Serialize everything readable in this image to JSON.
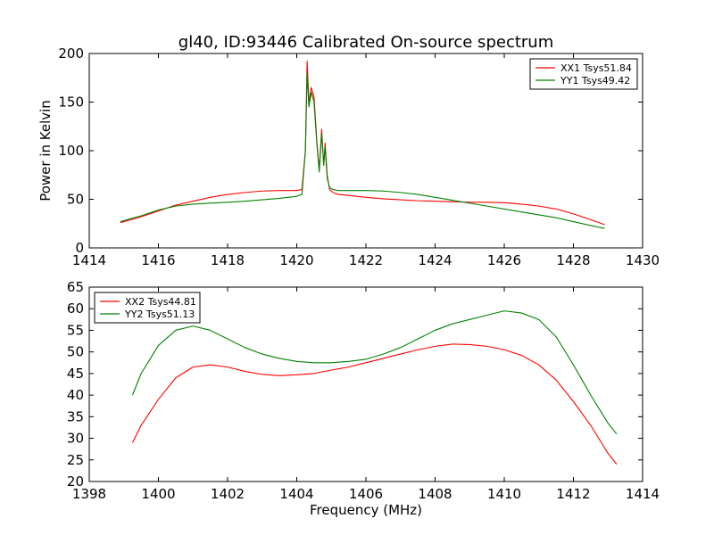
{
  "title": "gl40, ID:93446 Calibrated On-source spectrum",
  "chart_data": [
    {
      "type": "line",
      "title": "gl40, ID:93446 Calibrated On-source spectrum",
      "xlabel": "",
      "ylabel": "Power in Kelvin",
      "xlim": [
        1414,
        1430
      ],
      "ylim": [
        0,
        200
      ],
      "xticks": [
        1414,
        1416,
        1418,
        1420,
        1422,
        1424,
        1426,
        1428,
        1430
      ],
      "yticks": [
        0,
        50,
        100,
        150,
        200
      ],
      "legend_position": "top-right",
      "series": [
        {
          "name": "XX1 Tsys51.84",
          "color": "#ff0000",
          "x": [
            1414.9,
            1415.5,
            1416.0,
            1416.5,
            1417.0,
            1417.5,
            1418.0,
            1418.5,
            1419.0,
            1419.5,
            1420.0,
            1420.15,
            1420.25,
            1420.3,
            1420.35,
            1420.42,
            1420.5,
            1420.58,
            1420.65,
            1420.72,
            1420.78,
            1420.82,
            1420.88,
            1420.95,
            1421.05,
            1421.2,
            1421.5,
            1422.0,
            1422.5,
            1423.0,
            1423.5,
            1424.0,
            1424.5,
            1425.0,
            1425.5,
            1426.0,
            1426.5,
            1427.0,
            1427.5,
            1428.0,
            1428.5,
            1428.9
          ],
          "y": [
            26,
            32,
            38,
            44,
            48,
            52,
            55,
            57,
            58.5,
            59,
            59,
            60,
            100,
            192,
            150,
            165,
            155,
            110,
            80,
            122,
            85,
            108,
            75,
            60,
            57,
            55,
            54,
            52,
            50.5,
            49.5,
            48.5,
            48,
            47.5,
            47,
            47,
            46.5,
            45,
            43,
            40,
            35,
            29,
            24
          ]
        },
        {
          "name": "YY1 Tsys49.42",
          "color": "#008000",
          "x": [
            1414.9,
            1415.5,
            1416.0,
            1416.5,
            1417.0,
            1417.5,
            1418.0,
            1418.5,
            1419.0,
            1419.5,
            1420.0,
            1420.15,
            1420.25,
            1420.3,
            1420.35,
            1420.42,
            1420.5,
            1420.58,
            1420.65,
            1420.72,
            1420.78,
            1420.82,
            1420.88,
            1420.95,
            1421.05,
            1421.2,
            1421.5,
            1422.0,
            1422.5,
            1423.0,
            1423.5,
            1424.0,
            1424.5,
            1425.0,
            1425.5,
            1426.0,
            1426.5,
            1427.0,
            1427.5,
            1428.0,
            1428.5,
            1428.9
          ],
          "y": [
            27,
            33,
            39,
            43,
            45,
            46,
            47,
            48,
            49.5,
            51,
            53,
            55,
            100,
            180,
            145,
            160,
            150,
            108,
            78,
            118,
            85,
            104,
            72,
            62,
            60,
            59,
            59,
            59,
            58.5,
            57,
            55,
            52,
            49,
            46,
            43,
            40,
            37,
            34,
            31,
            27,
            23,
            20
          ]
        }
      ]
    },
    {
      "type": "line",
      "title": "",
      "xlabel": "Frequency (MHz)",
      "ylabel": "",
      "xlim": [
        1398,
        1414
      ],
      "ylim": [
        20,
        65
      ],
      "xticks": [
        1398,
        1400,
        1402,
        1404,
        1406,
        1408,
        1410,
        1412,
        1414
      ],
      "yticks": [
        20,
        25,
        30,
        35,
        40,
        45,
        50,
        55,
        60,
        65
      ],
      "legend_position": "top-left",
      "series": [
        {
          "name": "XX2 Tsys44.81",
          "color": "#ff0000",
          "x": [
            1399.25,
            1399.5,
            1400.0,
            1400.5,
            1401.0,
            1401.5,
            1402.0,
            1402.5,
            1403.0,
            1403.5,
            1404.0,
            1404.5,
            1405.0,
            1405.5,
            1406.0,
            1406.5,
            1407.0,
            1407.5,
            1408.0,
            1408.5,
            1409.0,
            1409.5,
            1410.0,
            1410.5,
            1411.0,
            1411.5,
            1412.0,
            1412.5,
            1413.0,
            1413.25
          ],
          "y": [
            29,
            33,
            39,
            44,
            46.5,
            47,
            46.5,
            45.5,
            44.8,
            44.5,
            44.7,
            45,
            45.8,
            46.5,
            47.5,
            48.5,
            49.5,
            50.5,
            51.3,
            51.8,
            51.7,
            51.3,
            50.5,
            49.2,
            47,
            43.5,
            38.5,
            33,
            26.5,
            24
          ]
        },
        {
          "name": "YY2 Tsys51.13",
          "color": "#008000",
          "x": [
            1399.25,
            1399.5,
            1400.0,
            1400.5,
            1401.0,
            1401.5,
            1402.0,
            1402.5,
            1403.0,
            1403.5,
            1404.0,
            1404.5,
            1405.0,
            1405.5,
            1406.0,
            1406.5,
            1407.0,
            1407.5,
            1408.0,
            1408.5,
            1409.0,
            1409.5,
            1410.0,
            1410.5,
            1411.0,
            1411.5,
            1412.0,
            1412.5,
            1413.0,
            1413.25
          ],
          "y": [
            40,
            45,
            51.5,
            55,
            56,
            55,
            53,
            51,
            49.5,
            48.5,
            47.8,
            47.5,
            47.5,
            47.8,
            48.3,
            49.5,
            51,
            53,
            55,
            56.5,
            57.5,
            58.5,
            59.5,
            59,
            57.5,
            53.5,
            47,
            40,
            33.5,
            31
          ]
        }
      ]
    }
  ]
}
